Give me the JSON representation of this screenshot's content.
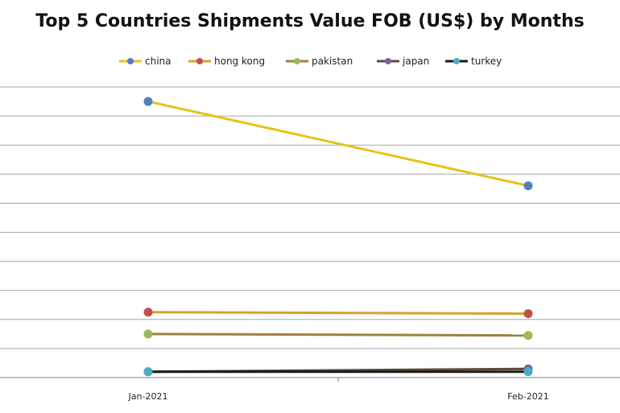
{
  "chart_data": {
    "type": "line",
    "title": "Top 5 Countries Shipments Value FOB (US$) by Months",
    "xlabel": "",
    "ylabel": "",
    "categories": [
      "Jan-2021",
      "Feb-2021"
    ],
    "ylim": [
      0,
      100
    ],
    "grid": true,
    "legend_position": "top",
    "series": [
      {
        "name": "china",
        "values": [
          95.0,
          66.0
        ],
        "line_color": "#E8C21B",
        "marker_color": "#4F81BD"
      },
      {
        "name": "hong kong",
        "values": [
          22.5,
          22.0
        ],
        "line_color": "#D4A32A",
        "marker_color": "#C0504D"
      },
      {
        "name": "pakistan",
        "values": [
          15.0,
          14.5
        ],
        "line_color": "#A08040",
        "marker_color": "#9BBB59"
      },
      {
        "name": "japan",
        "values": [
          2.0,
          3.0
        ],
        "line_color": "#5C4A3A",
        "marker_color": "#8064A2"
      },
      {
        "name": "turkey",
        "values": [
          2.0,
          2.0
        ],
        "line_color": "#1A1A1A",
        "marker_color": "#4BACC6"
      }
    ]
  }
}
